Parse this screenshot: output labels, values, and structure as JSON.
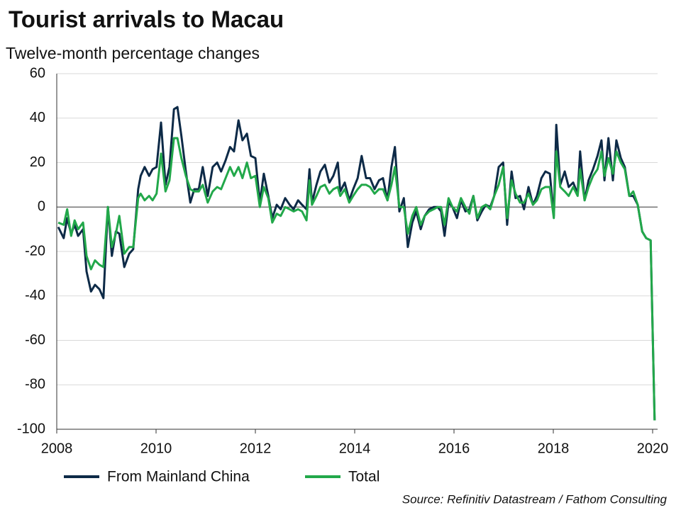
{
  "chart_data": {
    "type": "line",
    "title": "Tourist arrivals to Macau",
    "subtitle": "Twelve-month percentage changes",
    "source": "Source: Refinitiv Datastream / Fathom Consulting",
    "xlim": [
      2008,
      2020.1
    ],
    "xticks": [
      2008,
      2010,
      2012,
      2014,
      2016,
      2018,
      2020
    ],
    "ylim": [
      -100,
      60
    ],
    "yticks": [
      -100,
      -80,
      -60,
      -40,
      -20,
      0,
      20,
      40,
      60
    ],
    "grid": true,
    "legend": "bottom",
    "x": [
      2008.03,
      2008.14,
      2008.21,
      2008.29,
      2008.36,
      2008.43,
      2008.53,
      2008.6,
      2008.69,
      2008.77,
      2008.86,
      2008.94,
      2009.03,
      2009.11,
      2009.19,
      2009.26,
      2009.36,
      2009.46,
      2009.54,
      2009.64,
      2009.69,
      2009.77,
      2009.86,
      2009.93,
      2010.01,
      2010.1,
      2010.19,
      2010.27,
      2010.36,
      2010.43,
      2010.51,
      2010.6,
      2010.69,
      2010.77,
      2010.86,
      2010.94,
      2011.04,
      2011.14,
      2011.23,
      2011.31,
      2011.4,
      2011.49,
      2011.57,
      2011.66,
      2011.74,
      2011.83,
      2011.91,
      2012.0,
      2012.09,
      2012.17,
      2012.26,
      2012.34,
      2012.43,
      2012.51,
      2012.6,
      2012.69,
      2012.77,
      2012.86,
      2012.94,
      2013.03,
      2013.09,
      2013.14,
      2013.23,
      2013.31,
      2013.4,
      2013.49,
      2013.57,
      2013.66,
      2013.71,
      2013.8,
      2013.89,
      2013.97,
      2014.06,
      2014.14,
      2014.23,
      2014.31,
      2014.4,
      2014.49,
      2014.57,
      2014.66,
      2014.74,
      2014.81,
      2014.9,
      2014.99,
      2015.07,
      2015.16,
      2015.24,
      2015.33,
      2015.41,
      2015.5,
      2015.59,
      2015.67,
      2015.74,
      2015.81,
      2015.89,
      2015.97,
      2016.06,
      2016.14,
      2016.23,
      2016.31,
      2016.39,
      2016.47,
      2016.56,
      2016.64,
      2016.73,
      2016.81,
      2016.9,
      2016.99,
      2017.07,
      2017.16,
      2017.24,
      2017.33,
      2017.41,
      2017.5,
      2017.59,
      2017.67,
      2017.76,
      2017.84,
      2017.93,
      2018.01,
      2018.06,
      2018.14,
      2018.23,
      2018.31,
      2018.4,
      2018.49,
      2018.54,
      2018.63,
      2018.71,
      2018.8,
      2018.89,
      2018.97,
      2019.03,
      2019.11,
      2019.2,
      2019.27,
      2019.36,
      2019.44,
      2019.53,
      2019.61,
      2019.7,
      2019.79,
      2019.87,
      2019.96,
      2020.04
    ],
    "series": [
      {
        "name": "From Mainland China",
        "color": "#0d2a47",
        "values": [
          -9,
          -14,
          -5,
          -12,
          -8,
          -13,
          -10,
          -29,
          -38,
          -35,
          -37,
          -41,
          0,
          -22,
          -11,
          -12,
          -27,
          -21,
          -19,
          8,
          14,
          18,
          14,
          17,
          18,
          38,
          10,
          18,
          44,
          45,
          32,
          16,
          2,
          8,
          8,
          18,
          5,
          18,
          20,
          16,
          21,
          27,
          25,
          39,
          30,
          33,
          23,
          22,
          2,
          15,
          5,
          -5,
          1,
          -1,
          4,
          1,
          -1,
          3,
          1,
          -1,
          17,
          2,
          10,
          16,
          19,
          11,
          14,
          20,
          7,
          11,
          3,
          8,
          13,
          23,
          13,
          13,
          8,
          12,
          13,
          3,
          18,
          27,
          -2,
          4,
          -18,
          -7,
          -2,
          -10,
          -4,
          -1,
          0,
          0,
          -2,
          -13,
          2,
          0,
          -5,
          3,
          -2,
          -1,
          5,
          -6,
          -2,
          1,
          0,
          5,
          18,
          20,
          -8,
          16,
          4,
          5,
          -1,
          9,
          1,
          5,
          13,
          16,
          15,
          -4,
          37,
          10,
          16,
          9,
          11,
          6,
          25,
          3,
          12,
          17,
          23,
          30,
          12,
          31,
          12,
          30,
          22,
          18,
          5,
          5,
          1,
          -11,
          -14,
          -15,
          -96
        ]
      },
      {
        "name": "Total",
        "color": "#22a84a",
        "values": [
          -7,
          -8,
          -1,
          -13,
          -6,
          -10,
          -7,
          -22,
          -28,
          -24,
          -26,
          -27,
          0,
          -18,
          -12,
          -4,
          -21,
          -18,
          -18,
          4,
          6,
          3,
          5,
          3,
          6,
          24,
          7,
          12,
          31,
          31,
          22,
          14,
          8,
          7,
          7,
          10,
          2,
          7,
          9,
          8,
          13,
          18,
          14,
          18,
          13,
          20,
          13,
          14,
          0,
          9,
          4,
          -7,
          -3,
          -4,
          0,
          -1,
          -2,
          -1,
          -2,
          -6,
          12,
          1,
          5,
          9,
          10,
          6,
          8,
          9,
          5,
          8,
          2,
          5,
          8,
          10,
          10,
          9,
          6,
          8,
          8,
          3,
          10,
          18,
          0,
          0,
          -12,
          -4,
          0,
          -8,
          -4,
          -2,
          -1,
          0,
          0,
          -8,
          4,
          0,
          -2,
          4,
          0,
          -3,
          5,
          -5,
          0,
          1,
          -1,
          5,
          10,
          18,
          -5,
          12,
          6,
          2,
          2,
          6,
          1,
          3,
          8,
          9,
          9,
          -5,
          25,
          9,
          7,
          5,
          9,
          5,
          17,
          3,
          9,
          14,
          17,
          25,
          14,
          22,
          15,
          25,
          20,
          17,
          5,
          7,
          1,
          -11,
          -14,
          -15,
          -96
        ]
      }
    ]
  }
}
